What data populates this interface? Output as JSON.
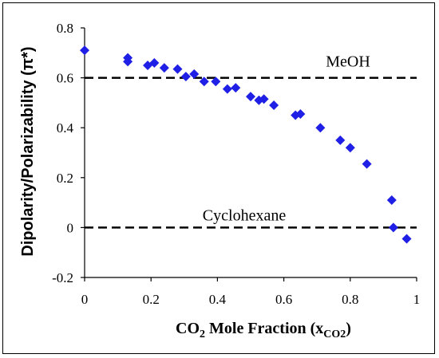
{
  "chart_data": {
    "type": "scatter",
    "title": "",
    "xlabel": {
      "main": "CO",
      "sub1": "2",
      "rest": " Mole Fraction (x",
      "sub2": "CO2",
      "close": ")"
    },
    "ylabel": "Dipolarity/Polarizability (π*)",
    "xlim": [
      0,
      1
    ],
    "ylim": [
      -0.2,
      0.8
    ],
    "x_ticks": [
      "0",
      "0.2",
      "0.4",
      "0.6",
      "0.8",
      "1"
    ],
    "y_ticks": [
      "-0.2",
      "0",
      "0.2",
      "0.4",
      "0.6",
      "0.8"
    ],
    "x_tick_values": [
      0,
      0.2,
      0.4,
      0.6,
      0.8,
      1
    ],
    "y_tick_values": [
      -0.2,
      0,
      0.2,
      0.4,
      0.6,
      0.8
    ],
    "grid": false,
    "marker_color": "#1f1fe6",
    "reference_lines": [
      {
        "label": "MeOH",
        "y": 0.6
      },
      {
        "label": "Cyclohexane",
        "y": 0.0
      }
    ],
    "series": [
      {
        "points": [
          [
            0.0,
            0.71
          ],
          [
            0.13,
            0.665
          ],
          [
            0.13,
            0.68
          ],
          [
            0.19,
            0.65
          ],
          [
            0.21,
            0.66
          ],
          [
            0.24,
            0.64
          ],
          [
            0.28,
            0.635
          ],
          [
            0.305,
            0.605
          ],
          [
            0.33,
            0.615
          ],
          [
            0.36,
            0.585
          ],
          [
            0.395,
            0.585
          ],
          [
            0.43,
            0.555
          ],
          [
            0.455,
            0.56
          ],
          [
            0.5,
            0.525
          ],
          [
            0.525,
            0.51
          ],
          [
            0.54,
            0.515
          ],
          [
            0.57,
            0.49
          ],
          [
            0.635,
            0.45
          ],
          [
            0.65,
            0.455
          ],
          [
            0.71,
            0.4
          ],
          [
            0.77,
            0.35
          ],
          [
            0.8,
            0.32
          ],
          [
            0.85,
            0.255
          ],
          [
            0.925,
            0.11
          ],
          [
            0.93,
            0.0
          ],
          [
            0.97,
            -0.045
          ]
        ]
      }
    ]
  }
}
